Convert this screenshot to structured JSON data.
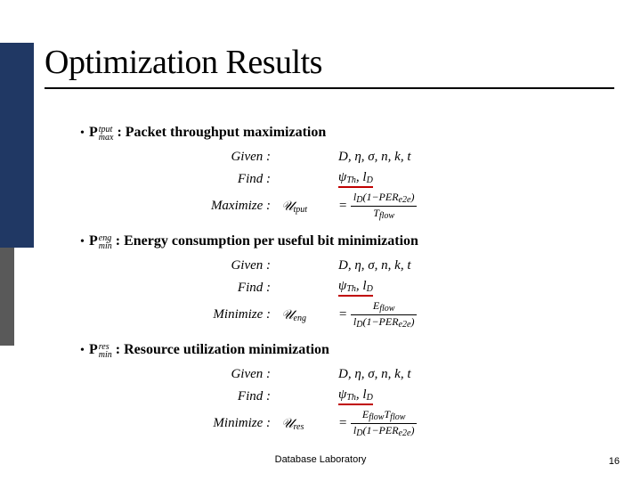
{
  "title": "Optimization Results",
  "sections": [
    {
      "sym_sup": "tput",
      "sym_sub": "max",
      "desc": "Packet throughput maximization",
      "given": "D, η, σ, n, k, t",
      "find_a": "ψ",
      "find_a_sub": "Th",
      "find_b": "l",
      "find_b_sub": "D",
      "opt_label": "Maximize :",
      "util_sub": "tput",
      "frac_num": "l_D(1−PER_e2e)",
      "frac_den": "T_flow"
    },
    {
      "sym_sup": "eng",
      "sym_sub": "min",
      "desc": "Energy consumption per useful bit minimization",
      "given": "D, η, σ, n, k, t",
      "find_a": "ψ",
      "find_a_sub": "Th",
      "find_b": "l",
      "find_b_sub": "D",
      "opt_label": "Minimize :",
      "util_sub": "eng",
      "frac_num": "E_flow",
      "frac_den": "l_D(1−PER_e2e)"
    },
    {
      "sym_sup": "res",
      "sym_sub": "min",
      "desc": "Resource utilization minimization",
      "given": "D, η, σ, n, k, t",
      "find_a": "ψ",
      "find_a_sub": "Th",
      "find_b": "l",
      "find_b_sub": "D",
      "opt_label": "Minimize :",
      "util_sub": "res",
      "frac_num": "E_flow T_flow",
      "frac_den": "l_D(1−PER_e2e)"
    }
  ],
  "footer": "Database Laboratory",
  "page_number": "16",
  "colors": {
    "sidebar": "#203864",
    "sidebar2": "#595959",
    "underline": "#c00000",
    "text": "#000000",
    "background": "#ffffff"
  }
}
